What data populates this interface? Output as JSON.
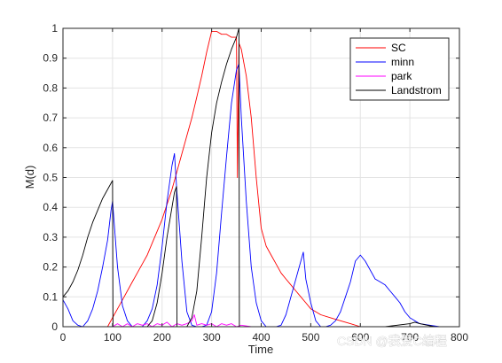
{
  "chart_data": {
    "type": "line",
    "title": "",
    "xlabel": "Time",
    "ylabel": "M(d)",
    "xlim": [
      0,
      800
    ],
    "ylim": [
      0,
      1
    ],
    "xticks": [
      0,
      100,
      200,
      300,
      400,
      500,
      600,
      700,
      800
    ],
    "yticks": [
      0,
      0.1,
      0.2,
      0.3,
      0.4,
      0.5,
      0.6,
      0.7,
      0.8,
      0.9,
      1
    ],
    "grid": true,
    "legend_position": "top-right",
    "series": [
      {
        "name": "SC",
        "color": "#ff0000",
        "x": [
          0,
          90,
          100,
          110,
          120,
          130,
          140,
          150,
          160,
          170,
          180,
          190,
          200,
          210,
          220,
          230,
          240,
          250,
          260,
          270,
          280,
          290,
          300,
          310,
          320,
          330,
          340,
          350,
          352,
          355,
          360,
          370,
          380,
          390,
          400,
          410,
          420,
          430,
          440,
          450,
          460,
          470,
          480,
          490,
          500,
          520,
          540,
          560,
          580,
          600,
          800
        ],
        "y": [
          0,
          0,
          0.03,
          0.06,
          0.09,
          0.12,
          0.15,
          0.18,
          0.21,
          0.24,
          0.28,
          0.32,
          0.36,
          0.41,
          0.46,
          0.52,
          0.58,
          0.64,
          0.7,
          0.77,
          0.84,
          0.92,
          0.99,
          0.99,
          0.98,
          0.98,
          0.97,
          0.97,
          0.5,
          0.95,
          0.93,
          0.84,
          0.7,
          0.5,
          0.33,
          0.27,
          0.24,
          0.21,
          0.18,
          0.16,
          0.14,
          0.12,
          0.1,
          0.08,
          0.06,
          0.04,
          0.03,
          0.02,
          0.01,
          0,
          0
        ]
      },
      {
        "name": "minn",
        "color": "#0000ff",
        "x": [
          0,
          10,
          20,
          30,
          40,
          50,
          60,
          70,
          80,
          90,
          97,
          100,
          105,
          110,
          120,
          130,
          140,
          150,
          160,
          170,
          180,
          190,
          200,
          210,
          220,
          225,
          230,
          240,
          250,
          260,
          270,
          280,
          290,
          300,
          310,
          320,
          330,
          340,
          350,
          355,
          360,
          370,
          380,
          390,
          400,
          410,
          420,
          430,
          440,
          450,
          460,
          470,
          480,
          485,
          490,
          500,
          510,
          520,
          530,
          540,
          550,
          560,
          570,
          580,
          590,
          600,
          610,
          620,
          630,
          640,
          650,
          660,
          670,
          680,
          690,
          700,
          720,
          740,
          760,
          780,
          800
        ],
        "y": [
          0.09,
          0.06,
          0.02,
          0.005,
          0,
          0.02,
          0.06,
          0.12,
          0.2,
          0.29,
          0.39,
          0.42,
          0.31,
          0.2,
          0.07,
          0.02,
          0,
          0,
          0,
          0.02,
          0.06,
          0.14,
          0.27,
          0.42,
          0.54,
          0.58,
          0.45,
          0.22,
          0.05,
          0.005,
          0,
          0,
          0.005,
          0.05,
          0.18,
          0.38,
          0.57,
          0.75,
          0.86,
          0.88,
          0.7,
          0.42,
          0.2,
          0.08,
          0.02,
          0,
          0,
          0,
          0.005,
          0.04,
          0.1,
          0.16,
          0.22,
          0.25,
          0.16,
          0.08,
          0.02,
          0,
          0,
          0.005,
          0.02,
          0.05,
          0.1,
          0.15,
          0.22,
          0.24,
          0.22,
          0.19,
          0.16,
          0.15,
          0.14,
          0.12,
          0.1,
          0.08,
          0.05,
          0.03,
          0.01,
          0.005,
          0,
          0,
          0
        ]
      },
      {
        "name": "park",
        "color": "#ff00ff",
        "x": [
          0,
          100,
          110,
          120,
          130,
          140,
          150,
          160,
          170,
          180,
          190,
          200,
          210,
          220,
          230,
          240,
          250,
          260,
          265,
          270,
          280,
          290,
          300,
          310,
          320,
          330,
          340,
          350,
          360,
          380,
          800
        ],
        "y": [
          0,
          0,
          0.01,
          0,
          0.01,
          0,
          0.01,
          0.005,
          0.01,
          0,
          0.01,
          0.005,
          0.015,
          0,
          0.01,
          0.005,
          0.01,
          0.02,
          0.04,
          0.005,
          0.01,
          0.005,
          0.01,
          0,
          0.01,
          0.005,
          0.01,
          0,
          0.005,
          0,
          0
        ]
      },
      {
        "name": "Landstrom",
        "color": "#000000",
        "x": [
          0,
          10,
          20,
          30,
          40,
          50,
          60,
          70,
          80,
          90,
          100,
          101,
          110,
          120,
          130,
          140,
          150,
          160,
          170,
          180,
          190,
          200,
          210,
          220,
          225,
          229,
          230,
          240,
          250,
          260,
          270,
          280,
          290,
          300,
          310,
          320,
          330,
          340,
          350,
          355,
          356,
          360,
          380,
          400,
          450,
          500,
          550,
          600,
          650,
          700,
          710,
          720,
          750,
          800
        ],
        "y": [
          0.1,
          0.12,
          0.15,
          0.19,
          0.24,
          0.3,
          0.35,
          0.39,
          0.43,
          0.46,
          0.49,
          0,
          0,
          0,
          0,
          0,
          0,
          0,
          0,
          0.02,
          0.08,
          0.18,
          0.3,
          0.4,
          0.45,
          0.47,
          0,
          0,
          0,
          0.03,
          0.12,
          0.3,
          0.5,
          0.65,
          0.75,
          0.82,
          0.88,
          0.93,
          0.97,
          1.0,
          0,
          0,
          0,
          0,
          0,
          0,
          0,
          0,
          0,
          0.01,
          0.015,
          0.01,
          0,
          0
        ]
      }
    ]
  },
  "watermark": "CSDN @我爱C编程"
}
